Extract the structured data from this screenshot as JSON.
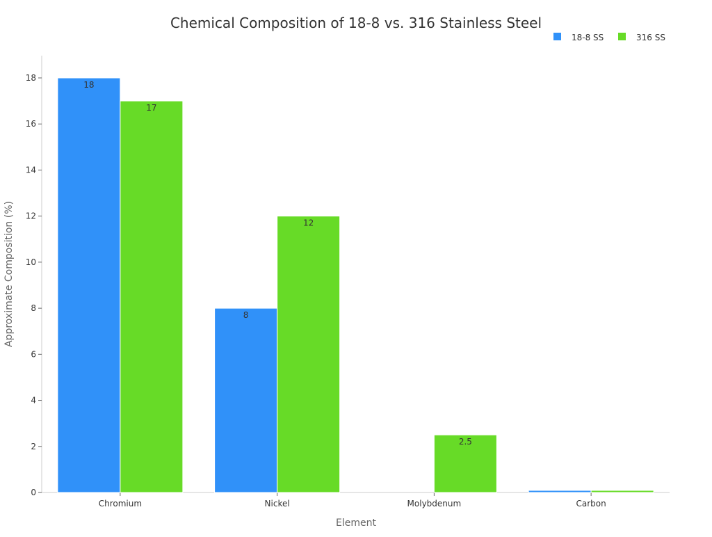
{
  "chart_data": {
    "type": "bar",
    "title": "Chemical Composition of 18-8 vs. 316 Stainless Steel",
    "xlabel": "Element",
    "ylabel": "Approximate Composition (%)",
    "categories": [
      "Chromium",
      "Nickel",
      "Molybdenum",
      "Carbon"
    ],
    "series": [
      {
        "name": "18-8 SS",
        "color": "#3091F9",
        "values": [
          18,
          8,
          0,
          0.08
        ],
        "labels": [
          "18",
          "8",
          "",
          ""
        ]
      },
      {
        "name": "316 SS",
        "color": "#67DB27",
        "values": [
          17,
          12,
          2.5,
          0.08
        ],
        "labels": [
          "17",
          "12",
          "2.5",
          ""
        ]
      }
    ],
    "ylim": [
      0,
      19
    ],
    "yticks": [
      0,
      2,
      4,
      6,
      8,
      10,
      12,
      14,
      16,
      18
    ],
    "grid": false,
    "legend": "top-right"
  }
}
